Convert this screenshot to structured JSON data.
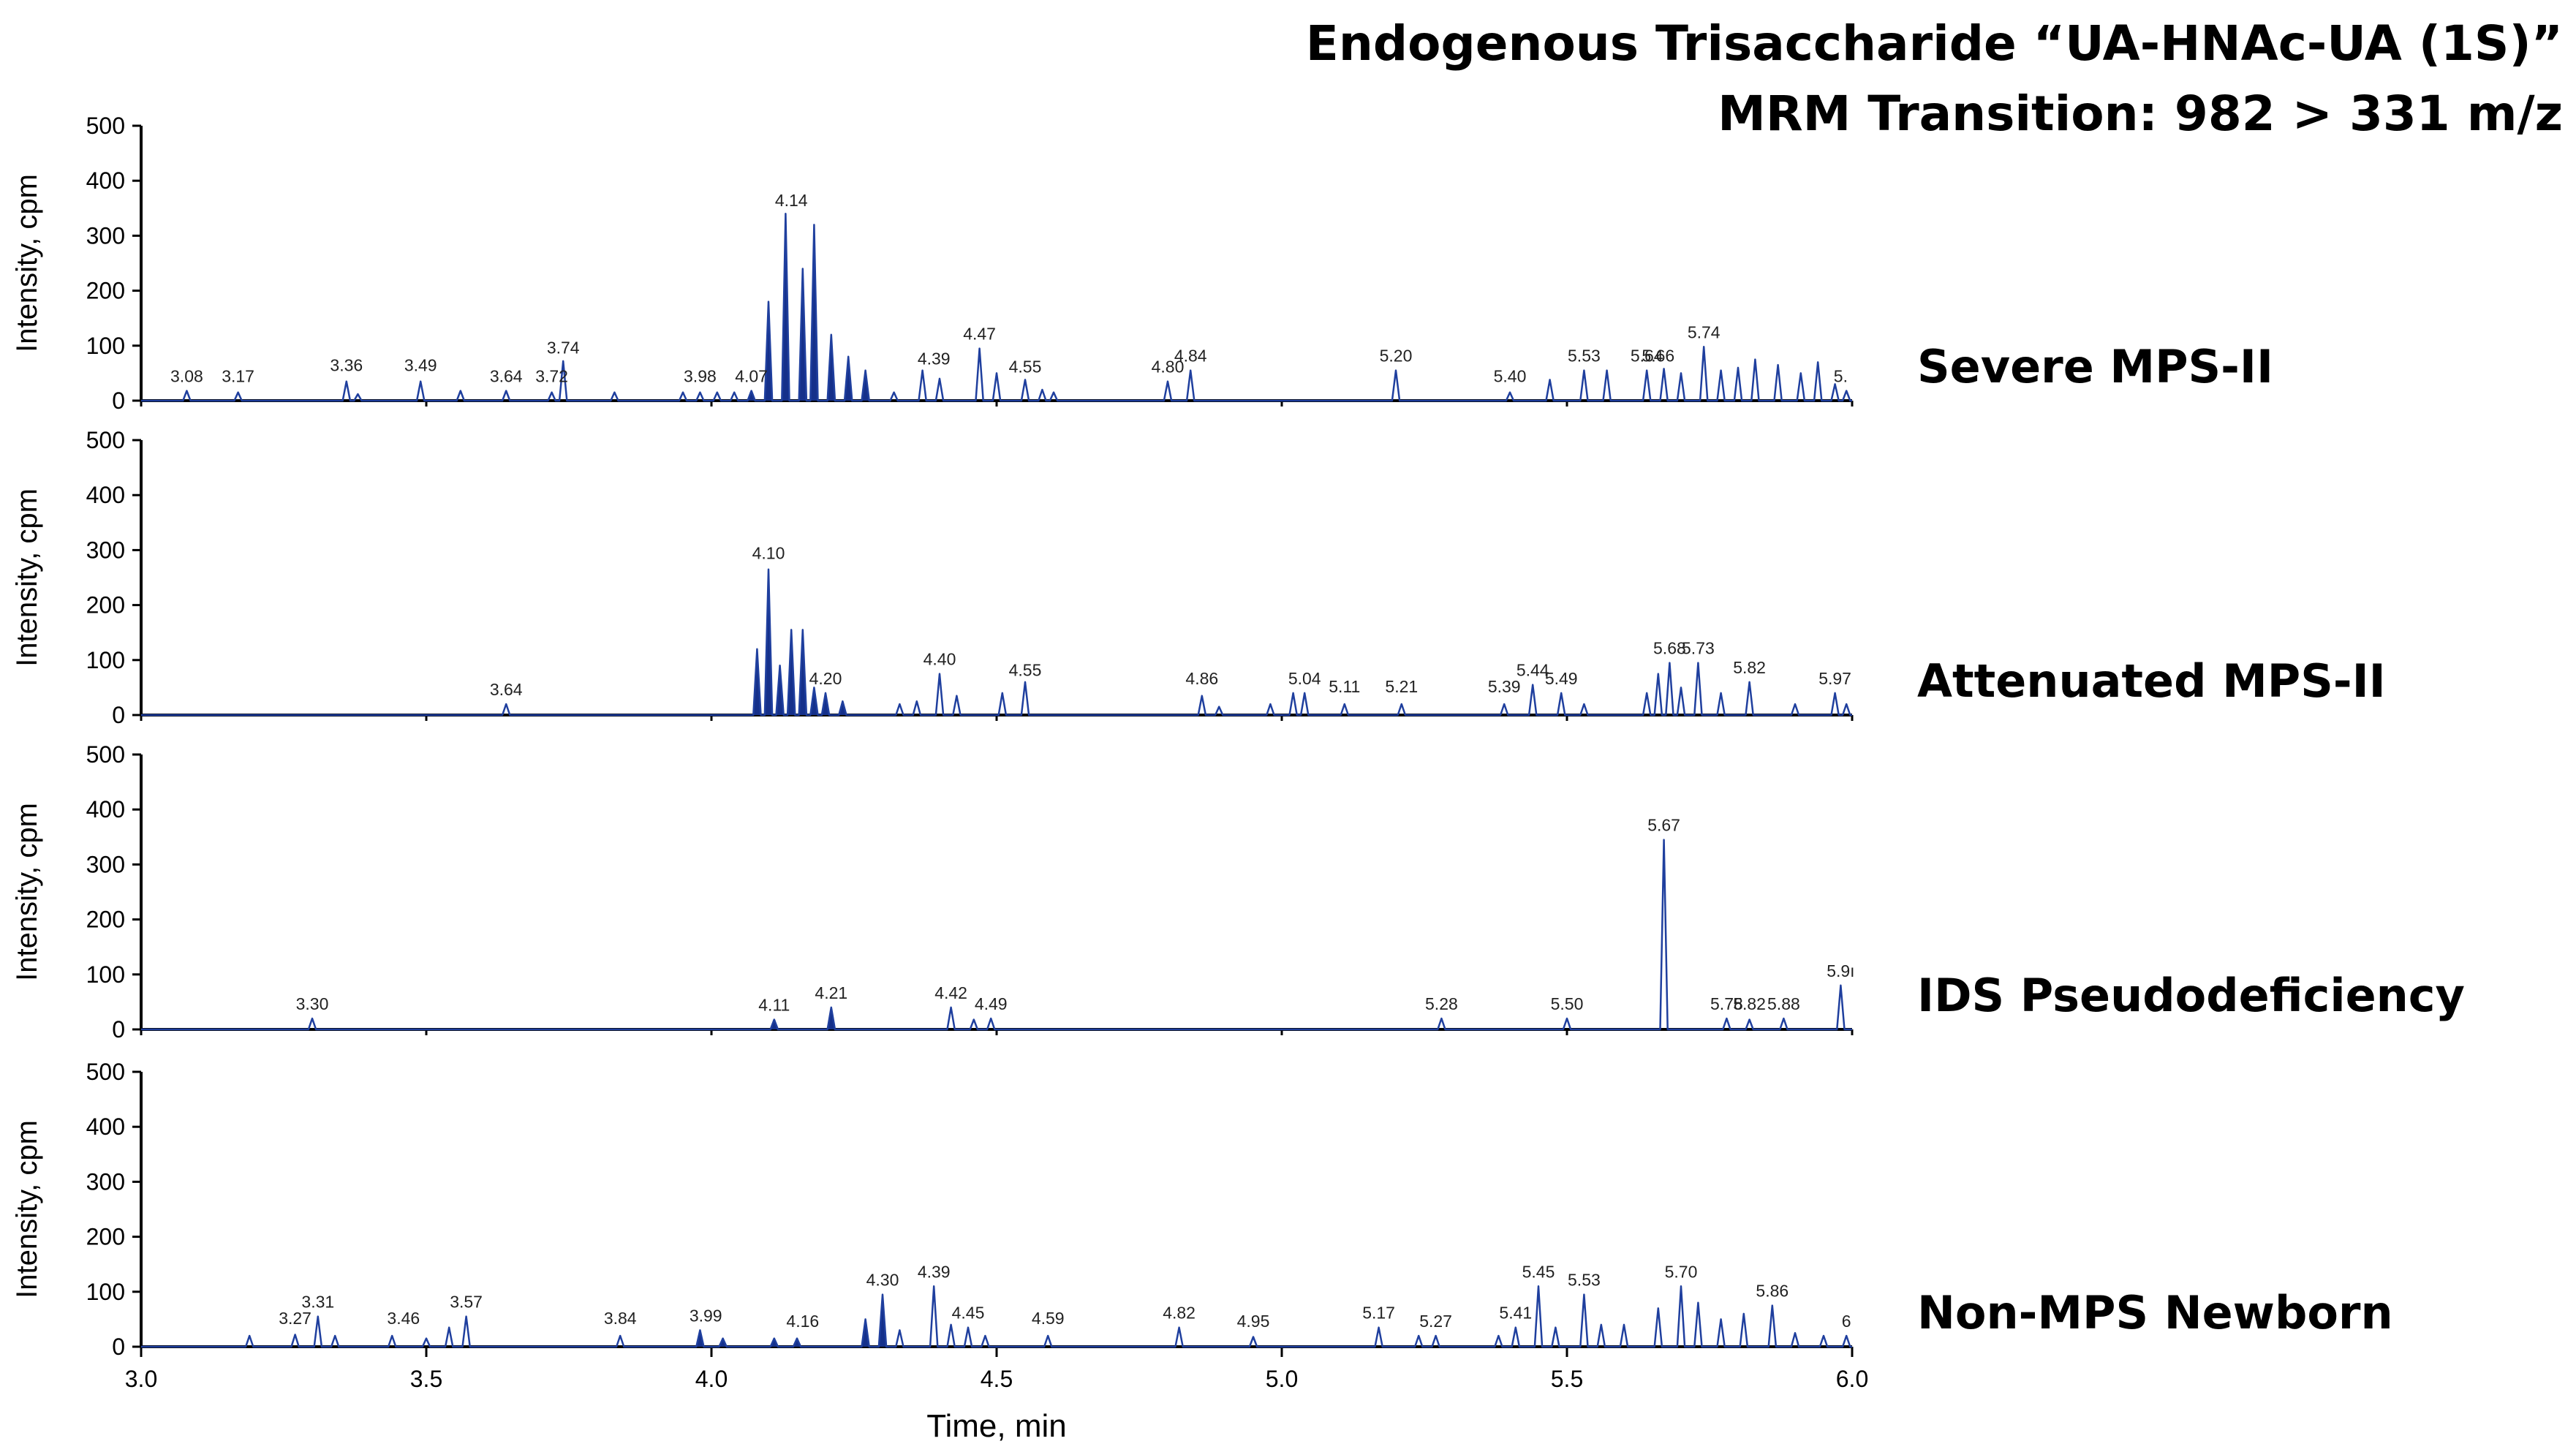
{
  "title": {
    "line1": "Endogenous Trisaccharide “UA-HNAc-UA (1S)”",
    "line2": "MRM Transition: 982 > 331 m/z"
  },
  "colors": {
    "trace": "#1f3f9e",
    "fill": "#15308a",
    "axis": "#000000"
  },
  "chart_data": {
    "type": "line",
    "xlabel": "Time, min",
    "ylabel": "Intensity, cpm",
    "xlim": [
      3.0,
      6.0
    ],
    "ylim": [
      0,
      500
    ],
    "x_ticks": [
      "3.0",
      "3.5",
      "4.0",
      "4.5",
      "5.0",
      "5.5",
      "6.0"
    ],
    "y_ticks": [
      "0",
      "100",
      "200",
      "300",
      "400",
      "500"
    ],
    "panels": [
      {
        "label": "Severe MPS-II",
        "peak_labels": [
          {
            "x": 3.08,
            "y": 18,
            "text": "3.08"
          },
          {
            "x": 3.17,
            "y": 18,
            "text": "3.17"
          },
          {
            "x": 3.36,
            "y": 38,
            "text": "3.36"
          },
          {
            "x": 3.49,
            "y": 38,
            "text": "3.49"
          },
          {
            "x": 3.64,
            "y": 18,
            "text": "3.64"
          },
          {
            "x": 3.72,
            "y": 18,
            "text": "3.72"
          },
          {
            "x": 3.74,
            "y": 70,
            "text": "3.74"
          },
          {
            "x": 3.98,
            "y": 18,
            "text": "3.98"
          },
          {
            "x": 4.07,
            "y": 18,
            "text": "4.07"
          },
          {
            "x": 4.14,
            "y": 338,
            "text": "4.14"
          },
          {
            "x": 4.39,
            "y": 50,
            "text": "4.39"
          },
          {
            "x": 4.47,
            "y": 95,
            "text": "4.47"
          },
          {
            "x": 4.55,
            "y": 35,
            "text": "4.55"
          },
          {
            "x": 4.8,
            "y": 35,
            "text": "4.80"
          },
          {
            "x": 4.84,
            "y": 55,
            "text": "4.84"
          },
          {
            "x": 5.2,
            "y": 55,
            "text": "5.20"
          },
          {
            "x": 5.4,
            "y": 18,
            "text": "5.40"
          },
          {
            "x": 5.53,
            "y": 55,
            "text": "5.53"
          },
          {
            "x": 5.64,
            "y": 55,
            "text": "5.64"
          },
          {
            "x": 5.66,
            "y": 55,
            "text": "5.66"
          },
          {
            "x": 5.74,
            "y": 98,
            "text": "5.74"
          },
          {
            "x": 5.98,
            "y": 18,
            "text": "5."
          }
        ],
        "peaks": [
          [
            3.08,
            18
          ],
          [
            3.17,
            15
          ],
          [
            3.36,
            35
          ],
          [
            3.38,
            12
          ],
          [
            3.49,
            35
          ],
          [
            3.56,
            18
          ],
          [
            3.64,
            18
          ],
          [
            3.72,
            15
          ],
          [
            3.74,
            72
          ],
          [
            3.83,
            15
          ],
          [
            3.95,
            15
          ],
          [
            3.98,
            15
          ],
          [
            4.01,
            15
          ],
          [
            4.04,
            15
          ],
          [
            4.07,
            18
          ],
          [
            4.1,
            180
          ],
          [
            4.13,
            340
          ],
          [
            4.16,
            240
          ],
          [
            4.18,
            320
          ],
          [
            4.21,
            120
          ],
          [
            4.24,
            80
          ],
          [
            4.27,
            55
          ],
          [
            4.32,
            15
          ],
          [
            4.37,
            55
          ],
          [
            4.4,
            40
          ],
          [
            4.47,
            95
          ],
          [
            4.5,
            50
          ],
          [
            4.55,
            38
          ],
          [
            4.58,
            20
          ],
          [
            4.6,
            15
          ],
          [
            4.8,
            35
          ],
          [
            4.84,
            55
          ],
          [
            5.2,
            55
          ],
          [
            5.4,
            15
          ],
          [
            5.47,
            38
          ],
          [
            5.53,
            55
          ],
          [
            5.57,
            55
          ],
          [
            5.64,
            55
          ],
          [
            5.67,
            58
          ],
          [
            5.7,
            50
          ],
          [
            5.74,
            98
          ],
          [
            5.77,
            55
          ],
          [
            5.8,
            60
          ],
          [
            5.83,
            75
          ],
          [
            5.87,
            65
          ],
          [
            5.91,
            50
          ],
          [
            5.94,
            70
          ],
          [
            5.97,
            30
          ],
          [
            5.99,
            18
          ]
        ],
        "filled_range": [
          4.06,
          4.29
        ]
      },
      {
        "label": "Attenuated MPS-II",
        "peak_labels": [
          {
            "x": 3.64,
            "y": 20,
            "text": "3.64"
          },
          {
            "x": 4.1,
            "y": 268,
            "text": "4.10"
          },
          {
            "x": 4.2,
            "y": 40,
            "text": "4.20"
          },
          {
            "x": 4.4,
            "y": 75,
            "text": "4.40"
          },
          {
            "x": 4.55,
            "y": 55,
            "text": "4.55"
          },
          {
            "x": 4.86,
            "y": 40,
            "text": "4.86"
          },
          {
            "x": 5.04,
            "y": 40,
            "text": "5.04"
          },
          {
            "x": 5.11,
            "y": 25,
            "text": "5.11"
          },
          {
            "x": 5.21,
            "y": 25,
            "text": "5.21"
          },
          {
            "x": 5.39,
            "y": 25,
            "text": "5.39"
          },
          {
            "x": 5.44,
            "y": 55,
            "text": "5.44"
          },
          {
            "x": 5.49,
            "y": 40,
            "text": "5.49"
          },
          {
            "x": 5.68,
            "y": 95,
            "text": "5.68"
          },
          {
            "x": 5.73,
            "y": 95,
            "text": "5.73"
          },
          {
            "x": 5.82,
            "y": 60,
            "text": "5.82"
          },
          {
            "x": 5.97,
            "y": 40,
            "text": "5.97"
          }
        ],
        "peaks": [
          [
            3.64,
            20
          ],
          [
            4.08,
            120
          ],
          [
            4.1,
            265
          ],
          [
            4.12,
            90
          ],
          [
            4.14,
            155
          ],
          [
            4.16,
            155
          ],
          [
            4.18,
            50
          ],
          [
            4.2,
            40
          ],
          [
            4.23,
            25
          ],
          [
            4.33,
            20
          ],
          [
            4.36,
            25
          ],
          [
            4.4,
            75
          ],
          [
            4.43,
            35
          ],
          [
            4.51,
            40
          ],
          [
            4.55,
            60
          ],
          [
            4.86,
            35
          ],
          [
            4.89,
            15
          ],
          [
            4.98,
            20
          ],
          [
            5.02,
            40
          ],
          [
            5.04,
            40
          ],
          [
            5.11,
            20
          ],
          [
            5.21,
            20
          ],
          [
            5.39,
            20
          ],
          [
            5.44,
            55
          ],
          [
            5.49,
            40
          ],
          [
            5.53,
            20
          ],
          [
            5.64,
            40
          ],
          [
            5.66,
            75
          ],
          [
            5.68,
            95
          ],
          [
            5.7,
            50
          ],
          [
            5.73,
            95
          ],
          [
            5.77,
            40
          ],
          [
            5.82,
            60
          ],
          [
            5.9,
            20
          ],
          [
            5.97,
            40
          ],
          [
            5.99,
            20
          ]
        ],
        "filled_range": [
          4.06,
          4.25
        ]
      },
      {
        "label": "IDS Pseudodeficiency",
        "peak_labels": [
          {
            "x": 3.3,
            "y": 20,
            "text": "3.30"
          },
          {
            "x": 4.11,
            "y": 18,
            "text": "4.11"
          },
          {
            "x": 4.21,
            "y": 40,
            "text": "4.21"
          },
          {
            "x": 4.42,
            "y": 40,
            "text": "4.42"
          },
          {
            "x": 4.49,
            "y": 20,
            "text": "4.49"
          },
          {
            "x": 5.28,
            "y": 20,
            "text": "5.28"
          },
          {
            "x": 5.5,
            "y": 20,
            "text": "5.50"
          },
          {
            "x": 5.67,
            "y": 345,
            "text": "5.67"
          },
          {
            "x": 5.78,
            "y": 20,
            "text": "5.78"
          },
          {
            "x": 5.82,
            "y": 20,
            "text": "5.82"
          },
          {
            "x": 5.88,
            "y": 20,
            "text": "5.88"
          },
          {
            "x": 5.98,
            "y": 80,
            "text": "5.9ı"
          }
        ],
        "peaks": [
          [
            3.3,
            20
          ],
          [
            4.11,
            18
          ],
          [
            4.21,
            40
          ],
          [
            4.42,
            40
          ],
          [
            4.46,
            18
          ],
          [
            4.49,
            20
          ],
          [
            5.28,
            20
          ],
          [
            5.5,
            20
          ],
          [
            5.67,
            345
          ],
          [
            5.78,
            20
          ],
          [
            5.82,
            18
          ],
          [
            5.88,
            20
          ],
          [
            5.98,
            80
          ]
        ],
        "filled_ranges": [
          [
            4.09,
            4.13
          ],
          [
            4.19,
            4.23
          ]
        ]
      },
      {
        "label": "Non-MPS Newborn",
        "peak_labels": [
          {
            "x": 3.27,
            "y": 25,
            "text": "3.27"
          },
          {
            "x": 3.31,
            "y": 55,
            "text": "3.31"
          },
          {
            "x": 3.46,
            "y": 25,
            "text": "3.46"
          },
          {
            "x": 3.57,
            "y": 55,
            "text": "3.57"
          },
          {
            "x": 3.84,
            "y": 25,
            "text": "3.84"
          },
          {
            "x": 3.99,
            "y": 30,
            "text": "3.99"
          },
          {
            "x": 4.16,
            "y": 20,
            "text": "4.16"
          },
          {
            "x": 4.3,
            "y": 95,
            "text": "4.30"
          },
          {
            "x": 4.39,
            "y": 110,
            "text": "4.39"
          },
          {
            "x": 4.45,
            "y": 35,
            "text": "4.45"
          },
          {
            "x": 4.59,
            "y": 25,
            "text": "4.59"
          },
          {
            "x": 4.82,
            "y": 35,
            "text": "4.82"
          },
          {
            "x": 4.95,
            "y": 20,
            "text": "4.95"
          },
          {
            "x": 5.17,
            "y": 35,
            "text": "5.17"
          },
          {
            "x": 5.27,
            "y": 20,
            "text": "5.27"
          },
          {
            "x": 5.41,
            "y": 35,
            "text": "5.41"
          },
          {
            "x": 5.45,
            "y": 110,
            "text": "5.45"
          },
          {
            "x": 5.53,
            "y": 95,
            "text": "5.53"
          },
          {
            "x": 5.7,
            "y": 110,
            "text": "5.70"
          },
          {
            "x": 5.86,
            "y": 75,
            "text": "5.86"
          },
          {
            "x": 5.99,
            "y": 20,
            "text": "6"
          }
        ],
        "peaks": [
          [
            3.19,
            20
          ],
          [
            3.27,
            22
          ],
          [
            3.31,
            55
          ],
          [
            3.34,
            20
          ],
          [
            3.44,
            20
          ],
          [
            3.5,
            15
          ],
          [
            3.54,
            35
          ],
          [
            3.57,
            55
          ],
          [
            3.84,
            20
          ],
          [
            3.98,
            30
          ],
          [
            4.02,
            15
          ],
          [
            4.11,
            15
          ],
          [
            4.15,
            15
          ],
          [
            4.27,
            50
          ],
          [
            4.3,
            95
          ],
          [
            4.33,
            30
          ],
          [
            4.39,
            110
          ],
          [
            4.42,
            40
          ],
          [
            4.45,
            35
          ],
          [
            4.48,
            20
          ],
          [
            4.59,
            20
          ],
          [
            4.82,
            35
          ],
          [
            4.95,
            18
          ],
          [
            5.17,
            35
          ],
          [
            5.24,
            20
          ],
          [
            5.27,
            20
          ],
          [
            5.38,
            20
          ],
          [
            5.41,
            35
          ],
          [
            5.45,
            110
          ],
          [
            5.48,
            35
          ],
          [
            5.53,
            95
          ],
          [
            5.56,
            40
          ],
          [
            5.6,
            40
          ],
          [
            5.66,
            70
          ],
          [
            5.7,
            110
          ],
          [
            5.73,
            80
          ],
          [
            5.77,
            50
          ],
          [
            5.81,
            60
          ],
          [
            5.86,
            75
          ],
          [
            5.9,
            25
          ],
          [
            5.95,
            20
          ],
          [
            5.99,
            20
          ]
        ],
        "filled_ranges": [
          [
            3.96,
            4.03
          ],
          [
            4.1,
            4.17
          ],
          [
            4.25,
            4.32
          ]
        ]
      }
    ]
  }
}
